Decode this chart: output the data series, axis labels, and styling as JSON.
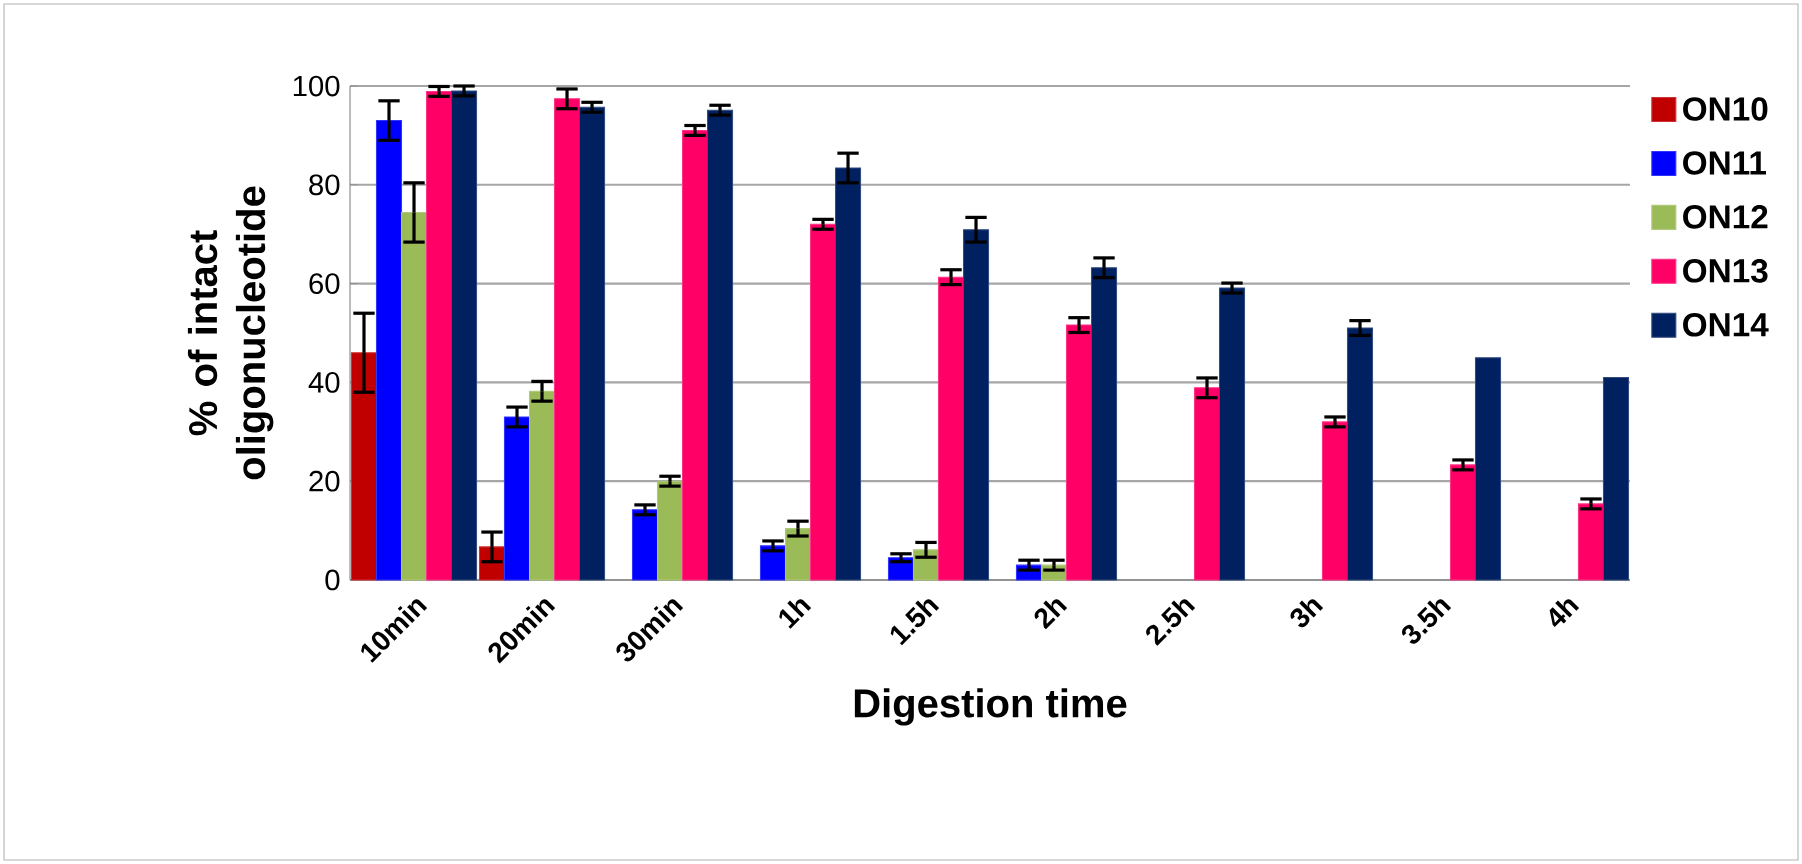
{
  "chart_data": {
    "type": "bar",
    "xlabel": "Digestion time",
    "ylabel": "% of intact oligonucleotide",
    "categories": [
      "10min",
      "20min",
      "30min",
      "1h",
      "1.5h",
      "2h",
      "2.5h",
      "3h",
      "3.5h",
      "4h"
    ],
    "series": [
      {
        "name": "ON10",
        "color": "#c00000",
        "values": [
          46,
          6.7,
          null,
          null,
          null,
          null,
          null,
          null,
          null,
          null
        ],
        "errors": [
          8,
          3,
          null,
          null,
          null,
          null,
          null,
          null,
          null,
          null
        ]
      },
      {
        "name": "ON11",
        "color": "#0000ff",
        "values": [
          93,
          33,
          14.2,
          6.9,
          4.5,
          3,
          null,
          null,
          null,
          null
        ],
        "errors": [
          4,
          2,
          1,
          1,
          0.8,
          1,
          null,
          null,
          null,
          null
        ]
      },
      {
        "name": "ON12",
        "color": "#9bbb59",
        "values": [
          74.4,
          38.2,
          20,
          10.4,
          6.1,
          3,
          null,
          null,
          null,
          null
        ],
        "errors": [
          6,
          2,
          1,
          1.5,
          1.5,
          1,
          null,
          null,
          null,
          null
        ]
      },
      {
        "name": "ON13",
        "color": "#ff0066",
        "values": [
          98.9,
          97.4,
          91,
          72,
          61.3,
          51.6,
          38.9,
          32,
          23.3,
          15.4
        ],
        "errors": [
          1,
          2,
          1,
          1,
          1.5,
          1.5,
          2,
          1,
          1,
          1
        ]
      },
      {
        "name": "ON14",
        "color": "#002060",
        "values": [
          99,
          95.7,
          95.1,
          83.4,
          70.9,
          63.2,
          59.1,
          51,
          45,
          41
        ],
        "errors": [
          1,
          1,
          1,
          3,
          2.5,
          2,
          1,
          1.5,
          null,
          null
        ]
      }
    ],
    "ylim": [
      0,
      100
    ],
    "yticks": [
      0,
      20,
      40,
      60,
      80,
      100
    ],
    "grid": "y",
    "legend": "right"
  }
}
